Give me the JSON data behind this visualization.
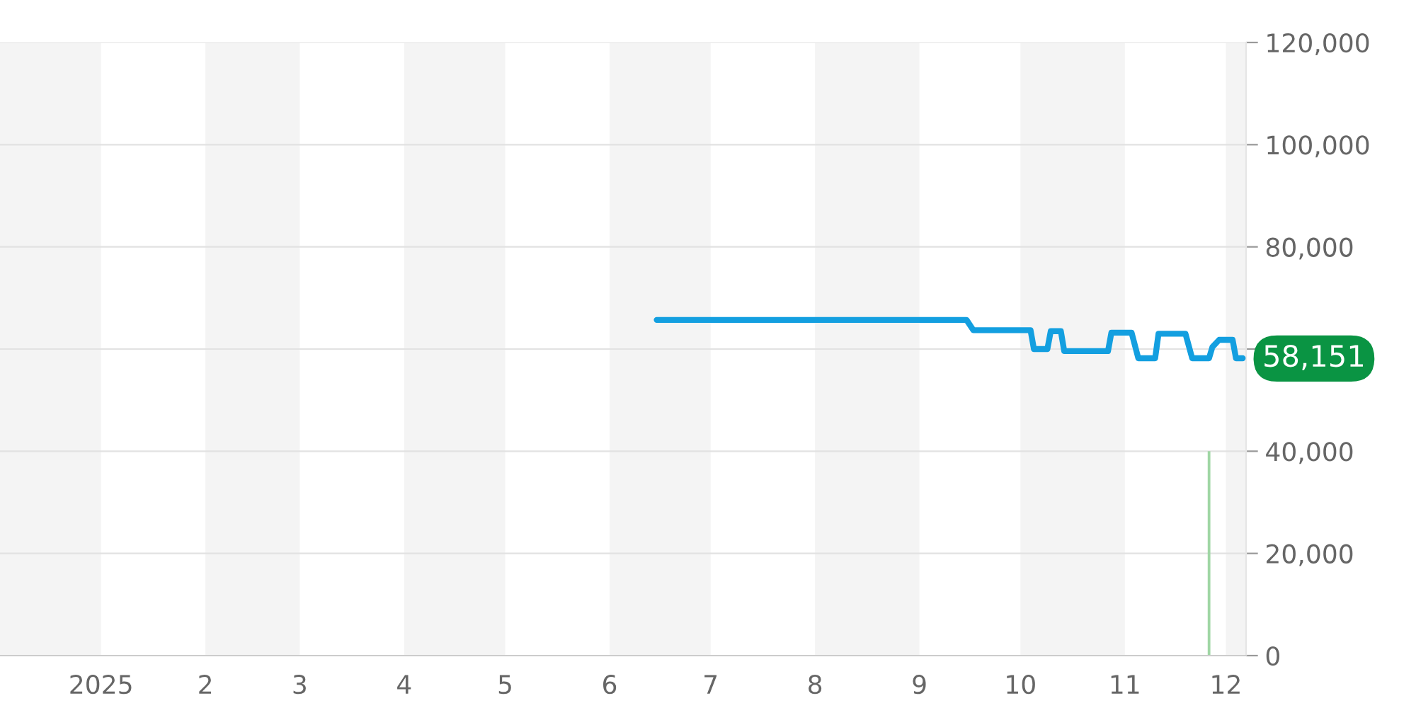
{
  "chart_data": {
    "type": "line",
    "series": [
      {
        "color": "#139fe0",
        "x": [
          "2025-06-15",
          "2025-09-15",
          "2025-09-17",
          "2025-10-04",
          "2025-10-05",
          "2025-10-09",
          "2025-10-10",
          "2025-10-13",
          "2025-10-14",
          "2025-10-27",
          "2025-10-28",
          "2025-11-03",
          "2025-11-05",
          "2025-11-10",
          "2025-11-11",
          "2025-11-19",
          "2025-11-21",
          "2025-11-26",
          "2025-11-27",
          "2025-11-29",
          "2025-12-03",
          "2025-12-04",
          "2025-12-06"
        ],
        "values": [
          65700,
          65700,
          63700,
          63700,
          60000,
          60000,
          63500,
          63500,
          59600,
          59600,
          63200,
          63200,
          58200,
          58200,
          63000,
          63000,
          58200,
          58200,
          60400,
          61800,
          61800,
          58200,
          58200
        ]
      },
      {
        "type": "bar",
        "color": "#9fd6a4",
        "x": [
          "2025-11-26"
        ],
        "values": [
          40000
        ]
      }
    ],
    "xlim": [
      "2024-12-02",
      "2025-12-07"
    ],
    "xticks": [
      {
        "value": "2025-01-01",
        "label": "2025"
      },
      {
        "value": "2025-02-01",
        "label": "2"
      },
      {
        "value": "2025-03-01",
        "label": "3"
      },
      {
        "value": "2025-04-01",
        "label": "4"
      },
      {
        "value": "2025-05-01",
        "label": "5"
      },
      {
        "value": "2025-06-01",
        "label": "6"
      },
      {
        "value": "2025-07-01",
        "label": "7"
      },
      {
        "value": "2025-08-01",
        "label": "8"
      },
      {
        "value": "2025-09-01",
        "label": "9"
      },
      {
        "value": "2025-10-01",
        "label": "10"
      },
      {
        "value": "2025-11-01",
        "label": "11"
      },
      {
        "value": "2025-12-01",
        "label": "12"
      }
    ],
    "ylim": [
      0,
      120000
    ],
    "yticks": [
      0,
      {
        "value": 20000,
        "label": "20,000"
      },
      {
        "value": 40000,
        "label": "40,000"
      },
      {
        "value": 60000,
        "label": null
      },
      {
        "value": 80000,
        "label": "80,000"
      },
      {
        "value": 100000,
        "label": "100,000"
      },
      {
        "value": 120000,
        "label": "120,000"
      }
    ],
    "bands": [
      {
        "axis": "x",
        "from": "2024-12-02",
        "to": "2025-01-01",
        "color": "#f4f4f4"
      },
      {
        "axis": "x",
        "from": "2025-02-01",
        "to": "2025-03-01",
        "color": "#f4f4f4"
      },
      {
        "axis": "x",
        "from": "2025-04-01",
        "to": "2025-05-01",
        "color": "#f4f4f4"
      },
      {
        "axis": "x",
        "from": "2025-06-01",
        "to": "2025-07-01",
        "color": "#f4f4f4"
      },
      {
        "axis": "x",
        "from": "2025-08-01",
        "to": "2025-09-01",
        "color": "#f4f4f4"
      },
      {
        "axis": "x",
        "from": "2025-10-01",
        "to": "2025-11-01",
        "color": "#f4f4f4"
      },
      {
        "axis": "x",
        "from": "2025-12-01",
        "to": "2025-12-07",
        "color": "#f4f4f4"
      }
    ],
    "annotations": [
      {
        "text": "58,151",
        "x": "2025-12-06",
        "y": 58151
      }
    ],
    "grid": "y"
  }
}
